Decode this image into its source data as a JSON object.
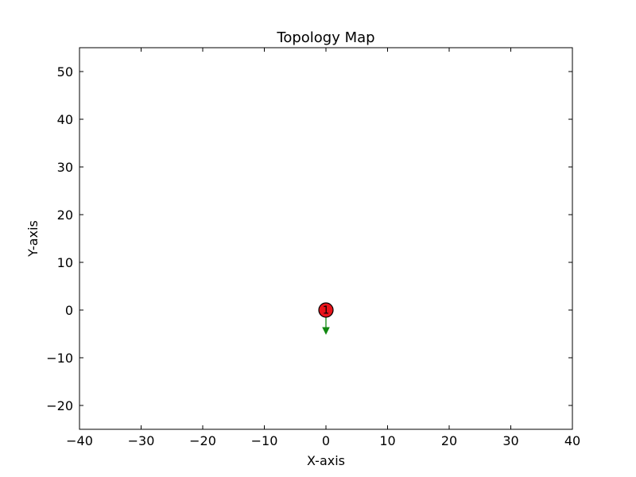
{
  "chart_data": {
    "type": "scatter",
    "title": "Topology Map",
    "xlabel": "X-axis",
    "ylabel": "Y-axis",
    "xlim": [
      -40,
      40
    ],
    "ylim": [
      -25,
      55
    ],
    "xticks": [
      -40,
      -30,
      -20,
      -10,
      0,
      10,
      20,
      30,
      40
    ],
    "yticks": [
      -20,
      -10,
      0,
      10,
      20,
      30,
      40,
      50
    ],
    "grid": false,
    "nodes": [
      {
        "label": "1",
        "x": 0,
        "y": 0,
        "color": "#e8141b"
      }
    ],
    "arrows": [
      {
        "from": [
          0,
          0
        ],
        "to": [
          0,
          -5
        ],
        "color": "#118811"
      }
    ]
  }
}
